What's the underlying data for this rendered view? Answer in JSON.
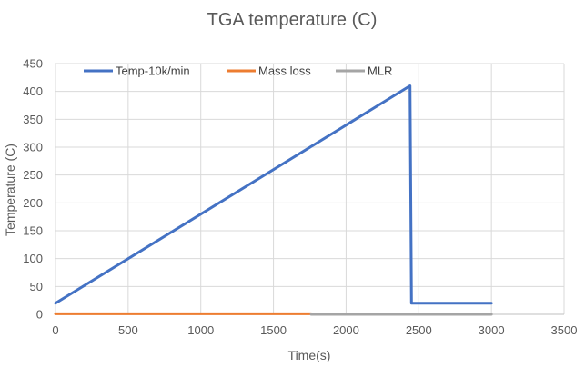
{
  "chart_data": {
    "type": "line",
    "title": "TGA temperature (C)",
    "xlabel": "Time(s)",
    "ylabel": "Temperature (C)",
    "xlim": [
      0,
      3500
    ],
    "ylim": [
      0,
      450
    ],
    "x_ticks": [
      0,
      500,
      1000,
      1500,
      2000,
      2500,
      3000,
      3500
    ],
    "y_ticks": [
      0,
      50,
      100,
      150,
      200,
      250,
      300,
      350,
      400,
      450
    ],
    "grid": true,
    "legend_position": "top",
    "series": [
      {
        "name": "Temp-10k/min",
        "color": "#4472C4",
        "x": [
          0,
          2440,
          2440,
          2450,
          2450,
          3000
        ],
        "y": [
          20,
          410,
          410,
          20,
          20,
          20
        ]
      },
      {
        "name": "Mass loss",
        "color": "#ED7D31",
        "x": [
          0,
          1760
        ],
        "y": [
          1,
          1
        ]
      },
      {
        "name": "MLR",
        "color": "#A5A5A5",
        "x": [
          1760,
          3000
        ],
        "y": [
          0,
          0
        ]
      }
    ]
  }
}
